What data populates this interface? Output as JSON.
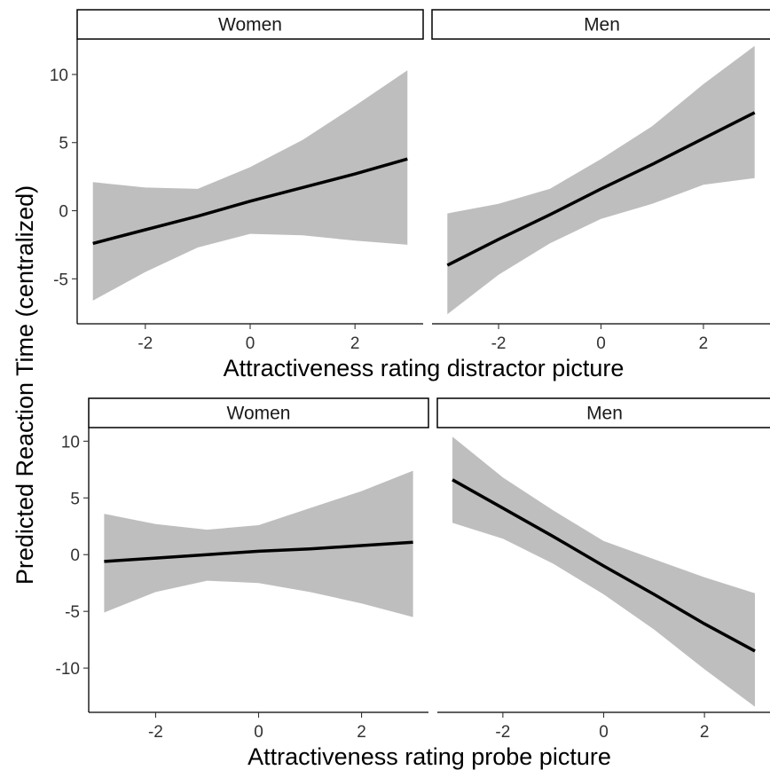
{
  "chart_data": [
    {
      "type": "line",
      "xlabel": "Attractiveness rating distractor picture",
      "ylabel": "Predicted Reaction Time (centralized)",
      "xlim": [
        -3.3,
        3.3
      ],
      "ylim": [
        -8.3,
        12.6
      ],
      "xticks": [
        -2,
        0,
        2
      ],
      "yticks": [
        10,
        5,
        0,
        -5
      ],
      "ytick_labels": [
        "10",
        "5",
        "0",
        "-5"
      ],
      "xtick_labels": [
        "-2",
        "0",
        "2"
      ],
      "grid": false,
      "band_color": "#bebebe",
      "line_color": "#000000",
      "panels": [
        {
          "strip": "Women",
          "x": [
            -3,
            -2,
            -1,
            0,
            1,
            2,
            3
          ],
          "fit": [
            -2.4,
            -1.4,
            -0.4,
            0.7,
            1.7,
            2.7,
            3.8
          ],
          "lower": [
            -6.6,
            -4.5,
            -2.7,
            -1.7,
            -1.8,
            -2.2,
            -2.5
          ],
          "upper": [
            2.1,
            1.7,
            1.6,
            3.2,
            5.2,
            7.7,
            10.3
          ]
        },
        {
          "strip": "Men",
          "x": [
            -3,
            -2,
            -1,
            0,
            1,
            2,
            3
          ],
          "fit": [
            -4.0,
            -2.1,
            -0.3,
            1.6,
            3.4,
            5.3,
            7.2
          ],
          "lower": [
            -7.6,
            -4.7,
            -2.4,
            -0.6,
            0.5,
            1.9,
            2.4
          ],
          "upper": [
            -0.2,
            0.5,
            1.6,
            3.8,
            6.2,
            9.3,
            12.1
          ]
        }
      ]
    },
    {
      "type": "line",
      "xlabel": "Attractiveness rating probe picture",
      "ylabel": "Predicted Reaction Time (centralized)",
      "xlim": [
        -3.3,
        3.3
      ],
      "ylim": [
        -13.9,
        11.2
      ],
      "xticks": [
        -2,
        0,
        2
      ],
      "yticks": [
        10,
        5,
        0,
        -5,
        -10
      ],
      "ytick_labels": [
        "10",
        "5",
        "0",
        "-5",
        "-10"
      ],
      "xtick_labels": [
        "-2",
        "0",
        "2"
      ],
      "grid": false,
      "band_color": "#bebebe",
      "line_color": "#000000",
      "panels": [
        {
          "strip": "Women",
          "x": [
            -3,
            -2,
            -1,
            0,
            1,
            2,
            3
          ],
          "fit": [
            -0.6,
            -0.3,
            0.0,
            0.3,
            0.5,
            0.8,
            1.1
          ],
          "lower": [
            -5.1,
            -3.3,
            -2.3,
            -2.5,
            -3.3,
            -4.3,
            -5.5
          ],
          "upper": [
            3.6,
            2.7,
            2.2,
            2.6,
            4.1,
            5.6,
            7.4
          ]
        },
        {
          "strip": "Men",
          "x": [
            -3,
            -2,
            -1,
            0,
            1,
            2,
            3
          ],
          "fit": [
            6.6,
            4.1,
            1.6,
            -1.0,
            -3.5,
            -6.1,
            -8.5
          ],
          "lower": [
            2.8,
            1.4,
            -0.8,
            -3.5,
            -6.6,
            -10.1,
            -13.4
          ],
          "upper": [
            10.4,
            6.8,
            3.9,
            1.2,
            -0.4,
            -2.0,
            -3.4
          ]
        }
      ]
    }
  ]
}
